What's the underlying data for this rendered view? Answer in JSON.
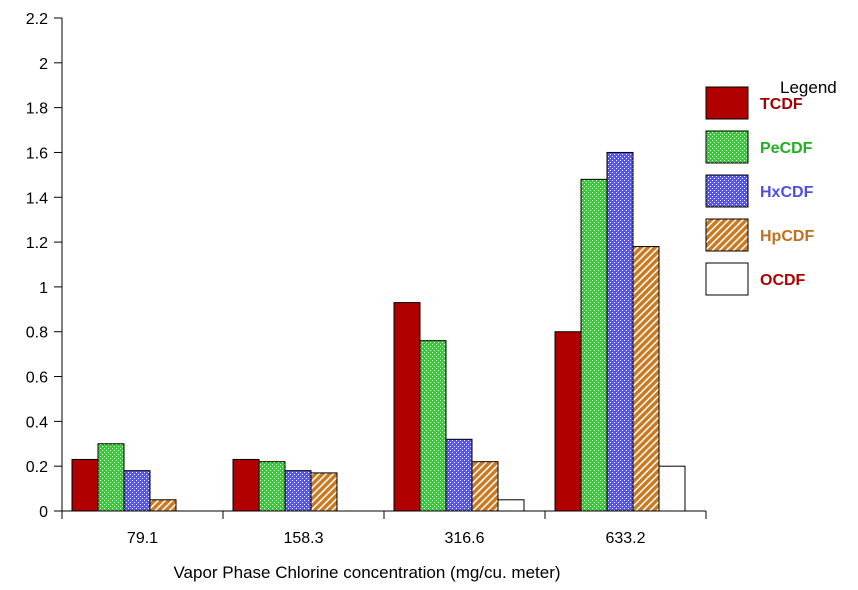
{
  "chart_data": {
    "type": "bar",
    "title": "",
    "xlabel": "Vapor Phase Chlorine concentration (mg/cu. meter)",
    "ylabel": "",
    "ylim": [
      0,
      2.2
    ],
    "yticks": [
      "0",
      "0.2",
      "0.4",
      "0.6",
      "0.8",
      "1",
      "1.2",
      "1.4",
      "1.6",
      "1.8",
      "2",
      "2.2"
    ],
    "categories": [
      "79.1",
      "158.3",
      "316.6",
      "633.2"
    ],
    "grid": false,
    "legend_position": "right",
    "legend_title": "Legend",
    "series": [
      {
        "name": "TCDF",
        "values": [
          0.23,
          0.23,
          0.93,
          0.8
        ],
        "color": "#b00000",
        "label_color": "#a00000",
        "pattern": "solid"
      },
      {
        "name": "PeCDF",
        "values": [
          0.3,
          0.22,
          0.76,
          1.48
        ],
        "color": "#33cc33",
        "label_color": "#20b020",
        "pattern": "crosshatch"
      },
      {
        "name": "HxCDF",
        "values": [
          0.18,
          0.18,
          0.32,
          1.6
        ],
        "color": "#5555ee",
        "label_color": "#5050e0",
        "pattern": "crosshatch"
      },
      {
        "name": "HpCDF",
        "values": [
          0.05,
          0.17,
          0.22,
          1.18
        ],
        "color": "#cc7a22",
        "label_color": "#c07020",
        "pattern": "diagonal"
      },
      {
        "name": "OCDF",
        "values": [
          0.0,
          0.0,
          0.05,
          0.2
        ],
        "color": "#ffffff",
        "label_color": "#b00000",
        "pattern": "none"
      }
    ]
  }
}
